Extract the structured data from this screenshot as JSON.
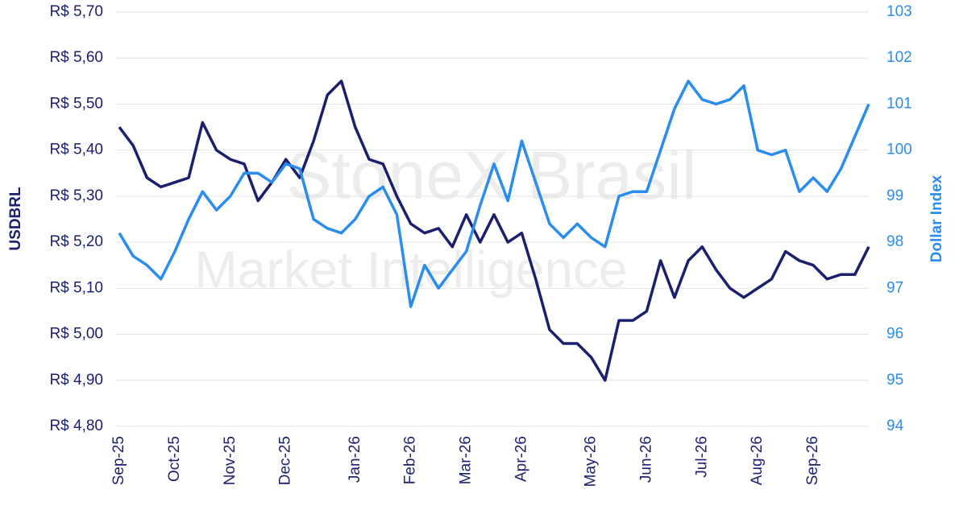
{
  "chart_data": {
    "type": "line",
    "watermark": [
      "StoneX Brasil",
      "Market Intelligence"
    ],
    "y_label": "USDBRL",
    "y2_label": "Dollar Index",
    "categories": [
      "Sep-25",
      null,
      null,
      null,
      "Oct-25",
      null,
      null,
      null,
      "Nov-25",
      null,
      null,
      null,
      "Dec-25",
      null,
      null,
      null,
      null,
      "Jan-26",
      null,
      null,
      null,
      "Feb-26",
      null,
      null,
      null,
      "Mar-26",
      null,
      null,
      null,
      "Apr-26",
      null,
      null,
      null,
      null,
      "May-26",
      null,
      null,
      null,
      "Jun-26",
      null,
      null,
      null,
      "Jul-26",
      null,
      null,
      null,
      "Aug-26",
      null,
      null,
      null,
      "Sep-26",
      null,
      null,
      null,
      null
    ],
    "series": [
      {
        "name": "USDBRL",
        "color": "#1b1f6f",
        "axis": "y",
        "values": [
          5.45,
          5.41,
          5.34,
          5.32,
          5.33,
          5.34,
          5.46,
          5.4,
          5.38,
          5.37,
          5.29,
          5.33,
          5.38,
          5.34,
          5.42,
          5.52,
          5.55,
          5.45,
          5.38,
          5.37,
          5.3,
          5.24,
          5.22,
          5.23,
          5.19,
          5.26,
          5.2,
          5.26,
          5.2,
          5.22,
          5.12,
          5.01,
          4.98,
          4.98,
          4.95,
          4.9,
          5.03,
          5.03,
          5.05,
          5.16,
          5.08,
          5.16,
          5.19,
          5.14,
          5.1,
          5.08,
          5.1,
          5.12,
          5.18,
          5.16,
          5.15,
          5.12,
          5.13,
          5.13,
          5.19
        ]
      },
      {
        "name": "Dollar Index",
        "color": "#2a8cec",
        "axis": "y2",
        "values": [
          98.2,
          97.7,
          97.5,
          97.2,
          97.8,
          98.5,
          99.1,
          98.7,
          99.0,
          99.5,
          99.5,
          99.3,
          99.7,
          99.6,
          98.5,
          98.3,
          98.2,
          98.5,
          99.0,
          99.2,
          98.6,
          96.6,
          97.5,
          97.0,
          97.4,
          97.8,
          98.8,
          99.7,
          98.9,
          100.2,
          99.3,
          98.4,
          98.1,
          98.4,
          98.1,
          97.9,
          99.0,
          99.1,
          99.1,
          100.0,
          100.9,
          101.5,
          101.1,
          101.0,
          101.1,
          101.4,
          100.0,
          99.9,
          100.0,
          99.1,
          99.4,
          99.1,
          99.6,
          100.3,
          101.0
        ]
      }
    ],
    "ylim": [
      4.8,
      5.7
    ],
    "yticks": [
      {
        "value": 4.8,
        "label": "R$ 4,80"
      },
      {
        "value": 4.9,
        "label": "R$ 4,90"
      },
      {
        "value": 5.0,
        "label": "R$ 5,00"
      },
      {
        "value": 5.1,
        "label": "R$ 5,10"
      },
      {
        "value": 5.2,
        "label": "R$ 5,20"
      },
      {
        "value": 5.3,
        "label": "R$ 5,30"
      },
      {
        "value": 5.4,
        "label": "R$ 5,40"
      },
      {
        "value": 5.5,
        "label": "R$ 5,50"
      },
      {
        "value": 5.6,
        "label": "R$ 5,60"
      },
      {
        "value": 5.7,
        "label": "R$ 5,70"
      }
    ],
    "y2lim": [
      94,
      103
    ],
    "y2ticks": [
      94,
      95,
      96,
      97,
      98,
      99,
      100,
      101,
      102,
      103
    ],
    "grid": true
  }
}
